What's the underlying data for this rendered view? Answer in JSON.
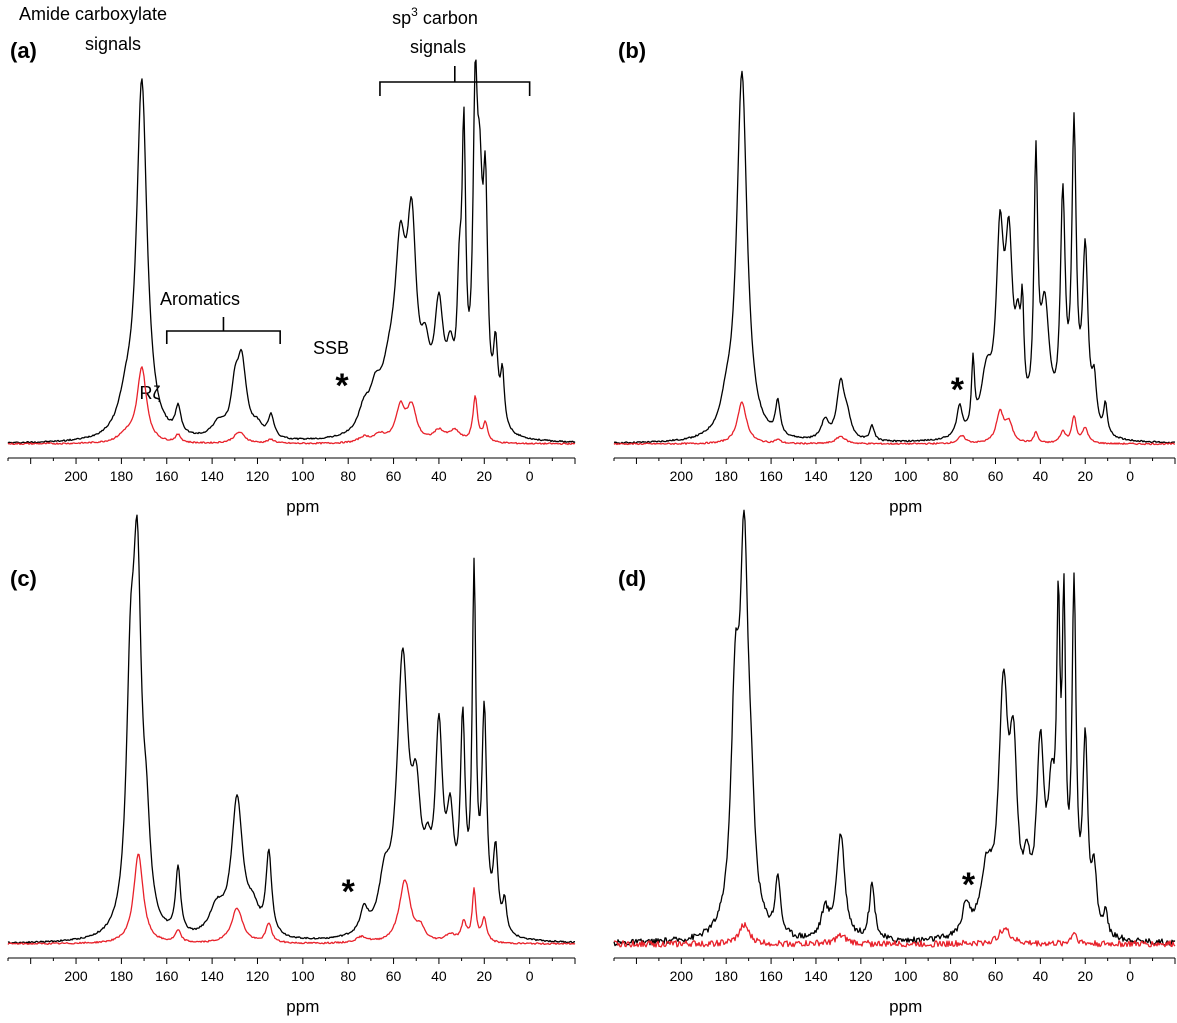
{
  "chart_data": [
    {
      "id": "a",
      "type": "line",
      "panel_label": "(a)",
      "xlabel": "ppm",
      "xlim": [
        230,
        -20
      ],
      "x_reversed": true,
      "xticks": [
        200,
        180,
        160,
        140,
        120,
        100,
        80,
        60,
        40,
        20,
        0
      ],
      "ylim": [
        -0.03,
        1.0
      ],
      "series": [
        {
          "color": "#000000",
          "peaks": [
            {
              "ppm": 171,
              "height": 0.95,
              "width": 2.8
            },
            {
              "ppm": 178,
              "height": 0.08,
              "width": 4
            },
            {
              "ppm": 155,
              "height": 0.07,
              "width": 1.5
            },
            {
              "ppm": 137,
              "height": 0.04,
              "width": 4
            },
            {
              "ppm": 130,
              "height": 0.1,
              "width": 2
            },
            {
              "ppm": 127,
              "height": 0.2,
              "width": 2.5
            },
            {
              "ppm": 120,
              "height": 0.03,
              "width": 3
            },
            {
              "ppm": 114,
              "height": 0.06,
              "width": 1.5
            },
            {
              "ppm": 73,
              "height": 0.06,
              "width": 3
            },
            {
              "ppm": 68,
              "height": 0.09,
              "width": 3
            },
            {
              "ppm": 62,
              "height": 0.12,
              "width": 4
            },
            {
              "ppm": 57,
              "height": 0.42,
              "width": 3
            },
            {
              "ppm": 52,
              "height": 0.48,
              "width": 2.5
            },
            {
              "ppm": 46,
              "height": 0.15,
              "width": 2.5
            },
            {
              "ppm": 40,
              "height": 0.3,
              "width": 2.5
            },
            {
              "ppm": 35,
              "height": 0.15,
              "width": 2
            },
            {
              "ppm": 31,
              "height": 0.3,
              "width": 1.2
            },
            {
              "ppm": 29,
              "height": 0.7,
              "width": 1
            },
            {
              "ppm": 24,
              "height": 0.75,
              "width": 1.2
            },
            {
              "ppm": 22,
              "height": 0.5,
              "width": 1.5
            },
            {
              "ppm": 19.5,
              "height": 0.55,
              "width": 1.2
            },
            {
              "ppm": 15,
              "height": 0.2,
              "width": 1.2
            },
            {
              "ppm": 12,
              "height": 0.14,
              "width": 1
            }
          ]
        },
        {
          "color": "#e8212a",
          "peaks": [
            {
              "ppm": 171,
              "height": 0.2,
              "width": 2.5
            },
            {
              "ppm": 178,
              "height": 0.02,
              "width": 4
            },
            {
              "ppm": 155,
              "height": 0.02,
              "width": 1.5
            },
            {
              "ppm": 128,
              "height": 0.03,
              "width": 3
            },
            {
              "ppm": 114,
              "height": 0.01,
              "width": 2
            },
            {
              "ppm": 73,
              "height": 0.015,
              "width": 3
            },
            {
              "ppm": 66,
              "height": 0.02,
              "width": 3
            },
            {
              "ppm": 57,
              "height": 0.09,
              "width": 2.5
            },
            {
              "ppm": 52,
              "height": 0.09,
              "width": 2.5
            },
            {
              "ppm": 40,
              "height": 0.03,
              "width": 3
            },
            {
              "ppm": 33,
              "height": 0.03,
              "width": 3
            },
            {
              "ppm": 24,
              "height": 0.12,
              "width": 1.2
            },
            {
              "ppm": 19.5,
              "height": 0.05,
              "width": 1.2
            }
          ]
        }
      ],
      "annotations": {
        "amide_line1": "Amide carboxylate",
        "amide_line2": "signals",
        "sp3_line1": "sp",
        "sp3_sup": "3",
        "sp3_rest": " carbon",
        "sp3_line2": "signals",
        "aromatics": "Aromatics",
        "aromatics_range": [
          160,
          110
        ],
        "sp3_range": [
          66,
          0
        ],
        "rzeta": "Rζ",
        "ssb": "SSB",
        "star": "*"
      }
    },
    {
      "id": "b",
      "type": "line",
      "panel_label": "(b)",
      "xlabel": "ppm",
      "xlim": [
        230,
        -20
      ],
      "x_reversed": true,
      "xticks": [
        200,
        180,
        160,
        140,
        120,
        100,
        80,
        60,
        40,
        20,
        0
      ],
      "ylim": [
        -0.03,
        1.0
      ],
      "series": [
        {
          "color": "#000000",
          "peaks": [
            {
              "ppm": 173,
              "height": 0.98,
              "width": 2.8
            },
            {
              "ppm": 180,
              "height": 0.06,
              "width": 3
            },
            {
              "ppm": 157,
              "height": 0.09,
              "width": 1.2
            },
            {
              "ppm": 136,
              "height": 0.05,
              "width": 2
            },
            {
              "ppm": 129,
              "height": 0.15,
              "width": 2
            },
            {
              "ppm": 126,
              "height": 0.05,
              "width": 2
            },
            {
              "ppm": 115,
              "height": 0.04,
              "width": 1.2
            },
            {
              "ppm": 76,
              "height": 0.08,
              "width": 1.5
            },
            {
              "ppm": 70,
              "height": 0.18,
              "width": 0.8
            },
            {
              "ppm": 64,
              "height": 0.15,
              "width": 3
            },
            {
              "ppm": 58,
              "height": 0.48,
              "width": 2
            },
            {
              "ppm": 54,
              "height": 0.45,
              "width": 2
            },
            {
              "ppm": 50,
              "height": 0.2,
              "width": 1.5
            },
            {
              "ppm": 48,
              "height": 0.24,
              "width": 0.8
            },
            {
              "ppm": 42,
              "height": 0.67,
              "width": 1
            },
            {
              "ppm": 38,
              "height": 0.32,
              "width": 2.5
            },
            {
              "ppm": 30,
              "height": 0.6,
              "width": 1.3
            },
            {
              "ppm": 25,
              "height": 0.78,
              "width": 1.2
            },
            {
              "ppm": 20,
              "height": 0.47,
              "width": 1.5
            },
            {
              "ppm": 16,
              "height": 0.12,
              "width": 1.2
            },
            {
              "ppm": 11,
              "height": 0.08,
              "width": 1
            }
          ]
        },
        {
          "color": "#e8212a",
          "peaks": [
            {
              "ppm": 173,
              "height": 0.11,
              "width": 2.5
            },
            {
              "ppm": 157,
              "height": 0.01,
              "width": 1.5
            },
            {
              "ppm": 129,
              "height": 0.02,
              "width": 2.5
            },
            {
              "ppm": 75,
              "height": 0.02,
              "width": 2
            },
            {
              "ppm": 58,
              "height": 0.08,
              "width": 2
            },
            {
              "ppm": 54,
              "height": 0.05,
              "width": 2
            },
            {
              "ppm": 42,
              "height": 0.03,
              "width": 1
            },
            {
              "ppm": 30,
              "height": 0.03,
              "width": 1.5
            },
            {
              "ppm": 25,
              "height": 0.07,
              "width": 1.2
            },
            {
              "ppm": 20,
              "height": 0.04,
              "width": 1.5
            }
          ]
        }
      ],
      "annotations": {
        "star": "*",
        "star_ppm": 77
      }
    },
    {
      "id": "c",
      "type": "line",
      "panel_label": "(c)",
      "xlabel": "ppm",
      "xlim": [
        230,
        -20
      ],
      "x_reversed": true,
      "xticks": [
        200,
        180,
        160,
        140,
        120,
        100,
        80,
        60,
        40,
        20,
        0
      ],
      "ylim": [
        -0.03,
        1.0
      ],
      "series": [
        {
          "color": "#000000",
          "peaks": [
            {
              "ppm": 173,
              "height": 0.85,
              "width": 2.2
            },
            {
              "ppm": 176,
              "height": 0.55,
              "width": 2.2
            },
            {
              "ppm": 169,
              "height": 0.2,
              "width": 2
            },
            {
              "ppm": 155,
              "height": 0.17,
              "width": 1.3
            },
            {
              "ppm": 138,
              "height": 0.07,
              "width": 4
            },
            {
              "ppm": 129,
              "height": 0.35,
              "width": 3
            },
            {
              "ppm": 122,
              "height": 0.06,
              "width": 3
            },
            {
              "ppm": 115,
              "height": 0.21,
              "width": 1.5
            },
            {
              "ppm": 73,
              "height": 0.06,
              "width": 2
            },
            {
              "ppm": 64,
              "height": 0.12,
              "width": 3
            },
            {
              "ppm": 56,
              "height": 0.68,
              "width": 3
            },
            {
              "ppm": 50,
              "height": 0.28,
              "width": 2.5
            },
            {
              "ppm": 45,
              "height": 0.12,
              "width": 2
            },
            {
              "ppm": 40,
              "height": 0.48,
              "width": 2
            },
            {
              "ppm": 35,
              "height": 0.25,
              "width": 2
            },
            {
              "ppm": 29.5,
              "height": 0.5,
              "width": 1.3
            },
            {
              "ppm": 24.5,
              "height": 0.88,
              "width": 1
            },
            {
              "ppm": 20,
              "height": 0.54,
              "width": 1.3
            },
            {
              "ppm": 15,
              "height": 0.2,
              "width": 1.3
            },
            {
              "ppm": 11,
              "height": 0.08,
              "width": 1
            }
          ]
        },
        {
          "color": "#e8212a",
          "peaks": [
            {
              "ppm": 172.5,
              "height": 0.23,
              "width": 2.5
            },
            {
              "ppm": 155,
              "height": 0.03,
              "width": 1.5
            },
            {
              "ppm": 129,
              "height": 0.09,
              "width": 3
            },
            {
              "ppm": 115,
              "height": 0.05,
              "width": 1.5
            },
            {
              "ppm": 74,
              "height": 0.015,
              "width": 3
            },
            {
              "ppm": 55,
              "height": 0.16,
              "width": 3
            },
            {
              "ppm": 48,
              "height": 0.03,
              "width": 2
            },
            {
              "ppm": 35,
              "height": 0.02,
              "width": 3
            },
            {
              "ppm": 29,
              "height": 0.05,
              "width": 1.3
            },
            {
              "ppm": 24.5,
              "height": 0.13,
              "width": 1
            },
            {
              "ppm": 20,
              "height": 0.06,
              "width": 1.3
            }
          ]
        }
      ],
      "annotations": {
        "star": "*",
        "star_ppm": 80
      }
    },
    {
      "id": "d",
      "type": "line",
      "panel_label": "(d)",
      "xlabel": "ppm",
      "xlim": [
        230,
        -20
      ],
      "x_reversed": true,
      "xticks": [
        200,
        180,
        160,
        140,
        120,
        100,
        80,
        60,
        40,
        20,
        0
      ],
      "ylim": [
        -0.03,
        1.0
      ],
      "series": [
        {
          "color": "#000000",
          "peaks": [
            {
              "ppm": 172,
              "height": 0.92,
              "width": 2.2
            },
            {
              "ppm": 176,
              "height": 0.55,
              "width": 2.2
            },
            {
              "ppm": 169,
              "height": 0.2,
              "width": 2
            },
            {
              "ppm": 157,
              "height": 0.15,
              "width": 1.3
            },
            {
              "ppm": 136,
              "height": 0.07,
              "width": 2
            },
            {
              "ppm": 129,
              "height": 0.27,
              "width": 2.2
            },
            {
              "ppm": 115,
              "height": 0.14,
              "width": 1.5
            },
            {
              "ppm": 73,
              "height": 0.08,
              "width": 2
            },
            {
              "ppm": 64,
              "height": 0.15,
              "width": 3
            },
            {
              "ppm": 56.5,
              "height": 0.6,
              "width": 2.5
            },
            {
              "ppm": 52,
              "height": 0.4,
              "width": 2
            },
            {
              "ppm": 46,
              "height": 0.12,
              "width": 2
            },
            {
              "ppm": 40,
              "height": 0.45,
              "width": 2
            },
            {
              "ppm": 35,
              "height": 0.3,
              "width": 2
            },
            {
              "ppm": 32,
              "height": 0.7,
              "width": 0.9
            },
            {
              "ppm": 29.5,
              "height": 0.75,
              "width": 0.9
            },
            {
              "ppm": 25,
              "height": 0.85,
              "width": 1.1
            },
            {
              "ppm": 20,
              "height": 0.48,
              "width": 1.3
            },
            {
              "ppm": 16,
              "height": 0.15,
              "width": 1.3
            },
            {
              "ppm": 11,
              "height": 0.06,
              "width": 1
            }
          ]
        },
        {
          "color": "#e8212a",
          "peaks": [
            {
              "ppm": 172,
              "height": 0.05,
              "width": 2.5
            },
            {
              "ppm": 129,
              "height": 0.02,
              "width": 3
            },
            {
              "ppm": 56,
              "height": 0.04,
              "width": 3
            },
            {
              "ppm": 25,
              "height": 0.03,
              "width": 1.5
            }
          ]
        }
      ],
      "annotations": {
        "star": "*",
        "star_ppm": 72
      }
    }
  ]
}
